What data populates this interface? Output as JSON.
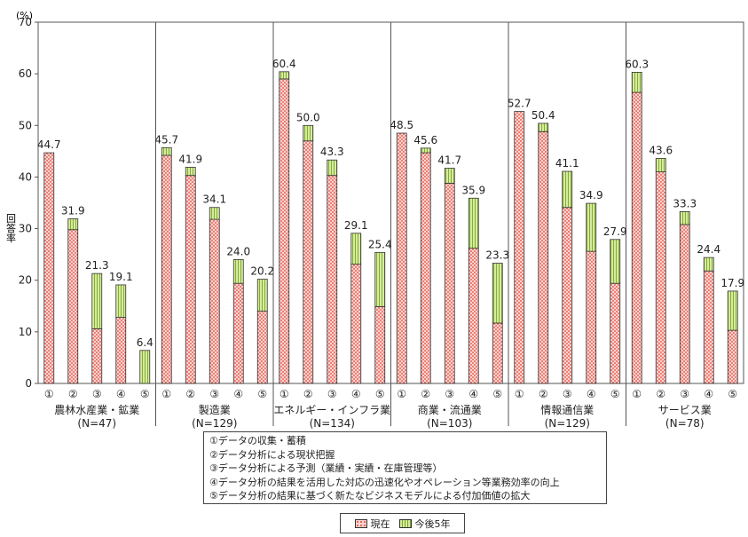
{
  "chart_data": {
    "type": "bar",
    "stacked": true,
    "unit": "(%)",
    "ylabel": "回答率",
    "ylim": [
      0,
      70
    ],
    "yticks": [
      0,
      10,
      20,
      30,
      40,
      50,
      60,
      70
    ],
    "grid": false,
    "colors": {
      "current": "#f7c6c0",
      "current_dot": "#e0453a",
      "future": "#c9e58a",
      "future_line": "#7aa52f",
      "edge": "#333333"
    },
    "bar_labels": [
      "①",
      "②",
      "③",
      "④",
      "⑤"
    ],
    "series": [
      {
        "name": "現在",
        "key": "current"
      },
      {
        "name": "今後5年",
        "key": "future"
      }
    ],
    "groups": [
      {
        "label": "農林水産業・鉱業",
        "n": "(N=47)",
        "current": [
          44.7,
          29.8,
          10.6,
          12.8,
          0.0
        ],
        "total": [
          44.7,
          31.9,
          21.3,
          19.1,
          6.4
        ]
      },
      {
        "label": "製造業",
        "n": "(N=129)",
        "current": [
          44.2,
          40.3,
          31.8,
          19.4,
          14.0
        ],
        "total": [
          45.7,
          41.9,
          34.1,
          24.0,
          20.2
        ]
      },
      {
        "label": "エネルギー・インフラ業",
        "n": "(N=134)",
        "current": [
          59.0,
          47.0,
          40.3,
          23.1,
          14.9
        ],
        "total": [
          60.4,
          50.0,
          43.3,
          29.1,
          25.4
        ]
      },
      {
        "label": "商業・流通業",
        "n": "(N=103)",
        "current": [
          48.5,
          44.7,
          38.8,
          26.2,
          11.7
        ],
        "total": [
          48.5,
          45.6,
          41.7,
          35.9,
          23.3
        ]
      },
      {
        "label": "情報通信業",
        "n": "(N=129)",
        "current": [
          52.7,
          48.8,
          34.1,
          25.6,
          19.4
        ],
        "total": [
          52.7,
          50.4,
          41.1,
          34.9,
          27.9
        ]
      },
      {
        "label": "サービス業",
        "n": "(N=78)",
        "current": [
          56.4,
          41.0,
          30.8,
          21.8,
          10.3
        ],
        "total": [
          60.3,
          43.6,
          33.3,
          24.4,
          17.9
        ]
      }
    ]
  },
  "notes": [
    "①データの収集・蓄積",
    "②データ分析による現状把握",
    "③データ分析による予測（業績・実績・在庫管理等）",
    "④データ分析の結果を活用した対応の迅速化やオペレーション等業務効率の向上",
    "⑤データ分析の結果に基づく新たなビジネスモデルによる付加価値の拡大"
  ],
  "legend": [
    {
      "label": "現在"
    },
    {
      "label": "今後5年"
    }
  ]
}
